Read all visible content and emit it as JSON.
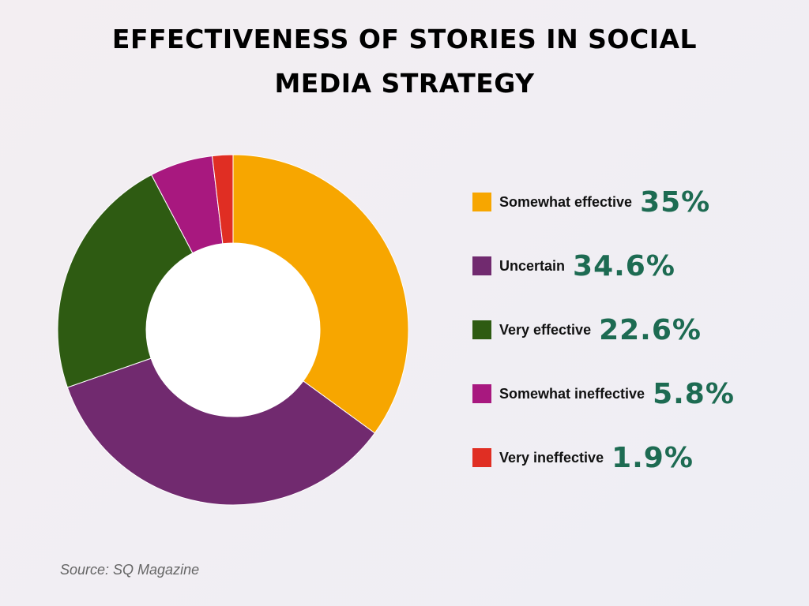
{
  "title": {
    "line1": "EFFECTIVENESS OF STORIES IN SOCIAL",
    "line2": "MEDIA STRATEGY"
  },
  "source": "Source: SQ Magazine",
  "chart_data": {
    "type": "pie",
    "style": "donut",
    "title": "EFFECTIVENESS OF STORIES IN SOCIAL MEDIA STRATEGY",
    "legend_position": "right",
    "categories": [
      "Somewhat effective",
      "Uncertain",
      "Very effective",
      "Somewhat ineffective",
      "Very ineffective"
    ],
    "values": [
      35,
      34.6,
      22.6,
      5.8,
      1.9
    ],
    "value_labels": [
      "35%",
      "34.6%",
      "22.6%",
      "5.8%",
      "1.9%"
    ],
    "colors": [
      "#f7a600",
      "#712a6f",
      "#2e5b12",
      "#a8187f",
      "#e02e23"
    ]
  },
  "accent_color": "#1d6b52"
}
